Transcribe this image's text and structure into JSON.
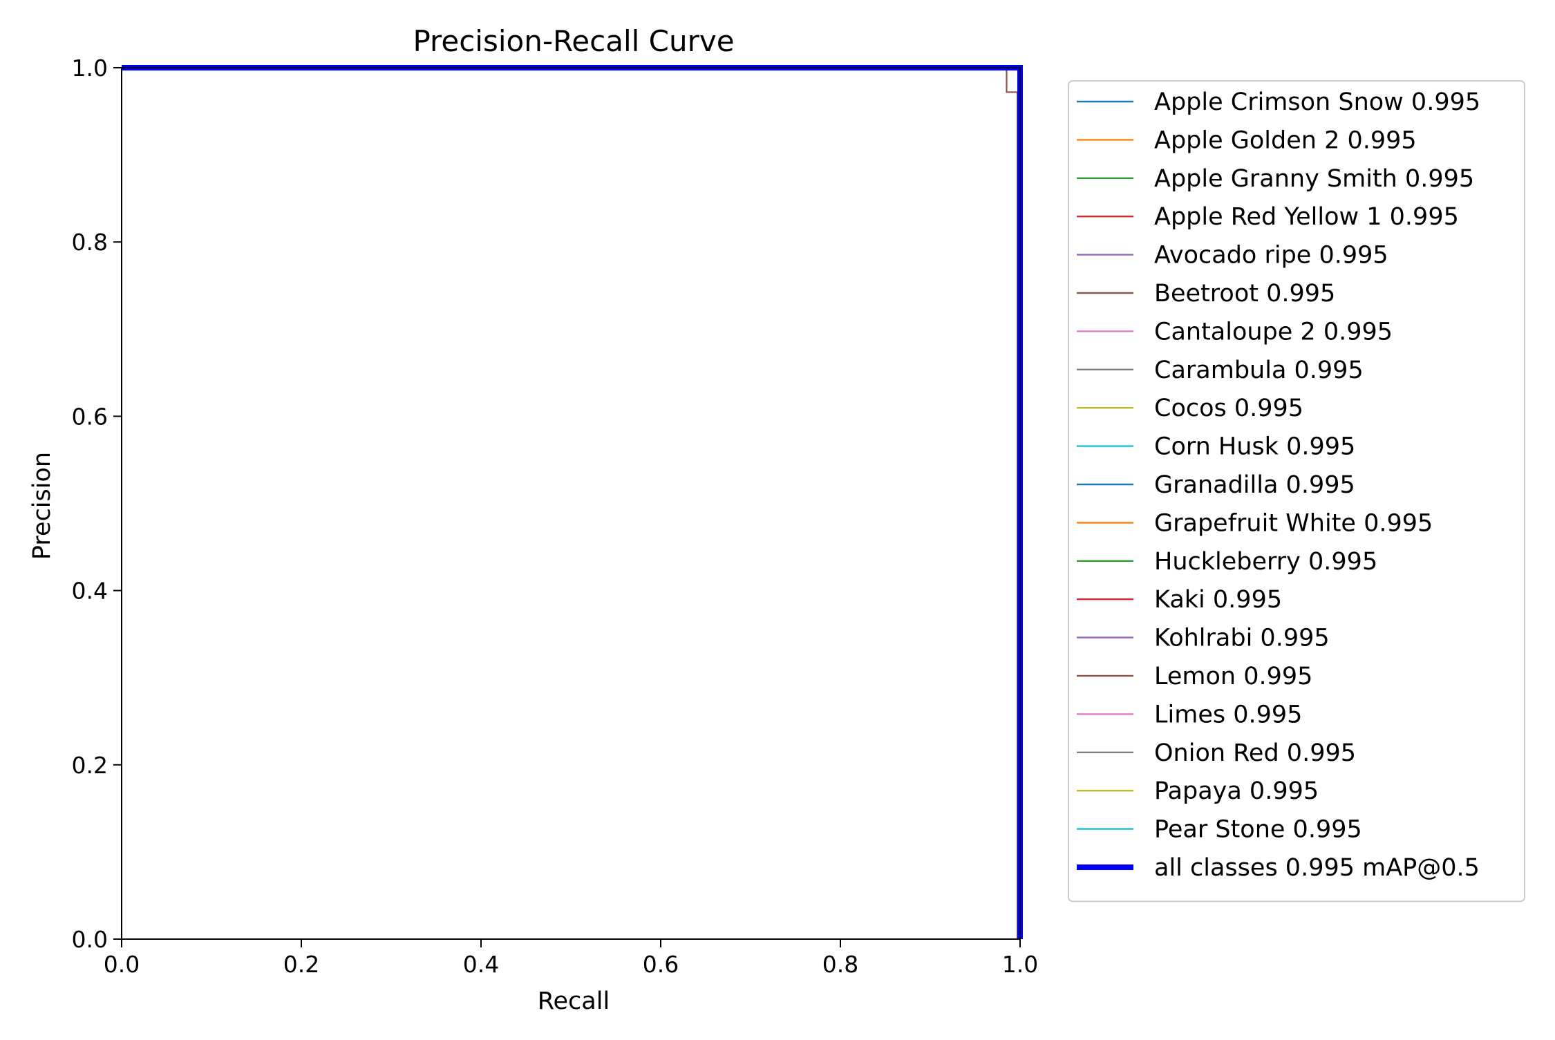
{
  "chart_data": {
    "type": "line",
    "title": "Precision-Recall Curve",
    "xlabel": "Recall",
    "ylabel": "Precision",
    "xlim": [
      0.0,
      1.0
    ],
    "ylim": [
      0.0,
      1.0
    ],
    "xticks": [
      "0.0",
      "0.2",
      "0.4",
      "0.6",
      "0.8",
      "1.0"
    ],
    "yticks": [
      "0.0",
      "0.2",
      "0.4",
      "0.6",
      "0.8",
      "1.0"
    ],
    "grid": false,
    "legend_position": "outside-right",
    "series": [
      {
        "name": "Apple Crimson Snow 0.995",
        "color": "#1f77b4",
        "x": [
          0.0,
          1.0,
          1.0
        ],
        "y": [
          1.0,
          1.0,
          0.0
        ]
      },
      {
        "name": "Apple Golden 2 0.995",
        "color": "#ff7f0e",
        "x": [
          0.0,
          1.0,
          1.0
        ],
        "y": [
          1.0,
          1.0,
          0.0
        ]
      },
      {
        "name": "Apple Granny Smith 0.995",
        "color": "#2ca02c",
        "x": [
          0.0,
          1.0,
          1.0
        ],
        "y": [
          1.0,
          1.0,
          0.0
        ]
      },
      {
        "name": "Apple Red Yellow 1 0.995",
        "color": "#d62728",
        "x": [
          0.0,
          1.0,
          1.0
        ],
        "y": [
          1.0,
          1.0,
          0.0
        ]
      },
      {
        "name": "Avocado ripe 0.995",
        "color": "#9467bd",
        "x": [
          0.0,
          1.0,
          1.0
        ],
        "y": [
          1.0,
          1.0,
          0.0
        ]
      },
      {
        "name": "Beetroot 0.995",
        "color": "#8c564b",
        "x": [
          0.0,
          0.985,
          0.985,
          0.997,
          0.997,
          1.0
        ],
        "y": [
          1.0,
          1.0,
          0.972,
          0.972,
          0.0,
          0.0
        ]
      },
      {
        "name": "Cantaloupe 2 0.995",
        "color": "#e377c2",
        "x": [
          0.0,
          1.0,
          1.0
        ],
        "y": [
          1.0,
          1.0,
          0.0
        ]
      },
      {
        "name": "Carambula 0.995",
        "color": "#7f7f7f",
        "x": [
          0.0,
          1.0,
          1.0
        ],
        "y": [
          1.0,
          1.0,
          0.0
        ]
      },
      {
        "name": "Cocos 0.995",
        "color": "#bcbd22",
        "x": [
          0.0,
          1.0,
          1.0
        ],
        "y": [
          1.0,
          1.0,
          0.0
        ]
      },
      {
        "name": "Corn Husk 0.995",
        "color": "#17becf",
        "x": [
          0.0,
          1.0,
          1.0
        ],
        "y": [
          1.0,
          1.0,
          0.0
        ]
      },
      {
        "name": "Granadilla 0.995",
        "color": "#1f77b4",
        "x": [
          0.0,
          1.0,
          1.0
        ],
        "y": [
          1.0,
          1.0,
          0.0
        ]
      },
      {
        "name": "Grapefruit White 0.995",
        "color": "#ff7f0e",
        "x": [
          0.0,
          1.0,
          1.0
        ],
        "y": [
          1.0,
          1.0,
          0.0
        ]
      },
      {
        "name": "Huckleberry 0.995",
        "color": "#2ca02c",
        "x": [
          0.0,
          1.0,
          1.0
        ],
        "y": [
          1.0,
          1.0,
          0.0
        ]
      },
      {
        "name": "Kaki 0.995",
        "color": "#d62728",
        "x": [
          0.0,
          1.0,
          1.0
        ],
        "y": [
          1.0,
          1.0,
          0.0
        ]
      },
      {
        "name": "Kohlrabi 0.995",
        "color": "#9467bd",
        "x": [
          0.0,
          1.0,
          1.0
        ],
        "y": [
          1.0,
          1.0,
          0.0
        ]
      },
      {
        "name": "Lemon 0.995",
        "color": "#8c564b",
        "x": [
          0.0,
          1.0,
          1.0
        ],
        "y": [
          1.0,
          1.0,
          0.0
        ]
      },
      {
        "name": "Limes 0.995",
        "color": "#e377c2",
        "x": [
          0.0,
          1.0,
          1.0
        ],
        "y": [
          1.0,
          1.0,
          0.0
        ]
      },
      {
        "name": "Onion Red 0.995",
        "color": "#7f7f7f",
        "x": [
          0.0,
          1.0,
          1.0
        ],
        "y": [
          1.0,
          1.0,
          0.0
        ]
      },
      {
        "name": "Papaya 0.995",
        "color": "#bcbd22",
        "x": [
          0.0,
          1.0,
          1.0
        ],
        "y": [
          1.0,
          1.0,
          0.0
        ]
      },
      {
        "name": "Pear Stone 0.995",
        "color": "#17becf",
        "x": [
          0.0,
          1.0,
          1.0
        ],
        "y": [
          1.0,
          1.0,
          0.0
        ]
      },
      {
        "name": "all classes 0.995 mAP@0.5",
        "color": "#0000ff",
        "bold": true,
        "x": [
          0.0,
          1.0,
          1.0
        ],
        "y": [
          1.0,
          1.0,
          0.0
        ]
      }
    ]
  }
}
